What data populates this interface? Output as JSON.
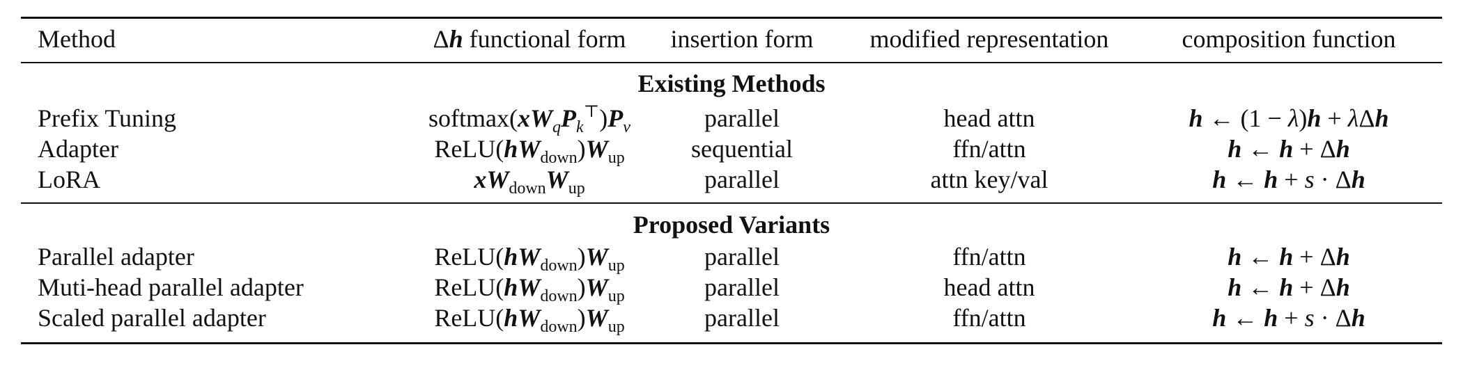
{
  "header": {
    "method": "Method",
    "functional_form_suffix": "functional form",
    "insertion_form": "insertion form",
    "modified_representation": "modified representation",
    "composition_function": "composition function"
  },
  "sections": [
    {
      "title": "Existing Methods",
      "rows": [
        {
          "method": "Prefix Tuning",
          "insertion": "parallel",
          "modified": "head attn"
        },
        {
          "method": "Adapter",
          "insertion": "sequential",
          "modified": "ffn/attn"
        },
        {
          "method": "LoRA",
          "insertion": "parallel",
          "modified": "attn key/val"
        }
      ]
    },
    {
      "title": "Proposed Variants",
      "rows": [
        {
          "method": "Parallel adapter",
          "insertion": "parallel",
          "modified": "ffn/attn"
        },
        {
          "method": "Muti-head parallel adapter",
          "insertion": "parallel",
          "modified": "head attn"
        },
        {
          "method": "Scaled parallel adapter",
          "insertion": "parallel",
          "modified": "ffn/attn"
        }
      ]
    }
  ],
  "math": {
    "softmax": "softmax",
    "relu": "ReLU",
    "down": "down",
    "up": "up",
    "q": "q",
    "k": "k",
    "v": "v",
    "one": "1"
  }
}
